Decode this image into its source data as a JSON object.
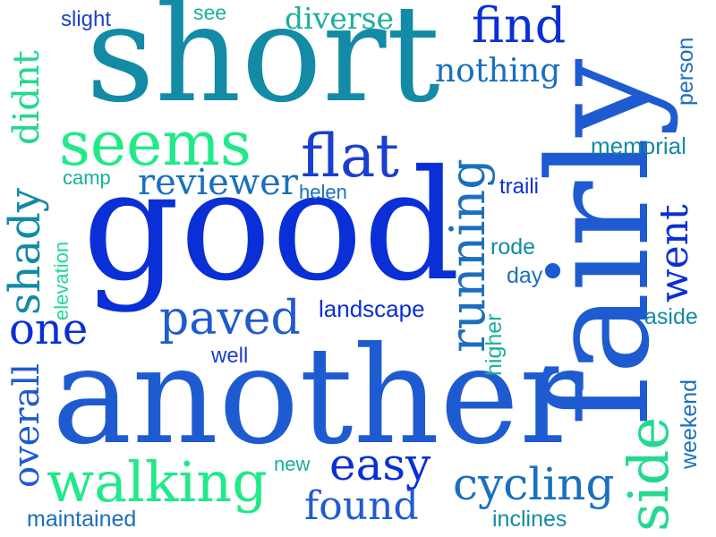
{
  "palette": {
    "dark_blue": "#0a2fd6",
    "blue": "#1f5bd0",
    "steel": "#1a6fbf",
    "teal": "#138aa6",
    "aqua": "#18b09a",
    "mint": "#1fea88",
    "green": "#22d98f"
  },
  "words": {
    "short": "short",
    "good": "good",
    "another": "another",
    "fairly": "fairly",
    "seems": "seems",
    "flat": "flat",
    "find": "find",
    "nothing": "nothing",
    "diverse": "diverse",
    "slight": "slight",
    "see": "see",
    "didnt": "didnt",
    "person": "person",
    "reviewer": "reviewer",
    "camp": "camp",
    "helen": "helen",
    "memorial": "memorial",
    "traili": "traili",
    "running": "running",
    "shady": "shady",
    "elevation": "elevation",
    "went": "went",
    "rode": "rode",
    "day": "day",
    "paved": "paved",
    "landscape": "landscape",
    "one": "one",
    "aside": "aside",
    "well": "well",
    "higher": "higher",
    "overall": "overall",
    "side": "side",
    "weekend": "weekend",
    "easy": "easy",
    "new": "new",
    "walking": "walking",
    "cycling": "cycling",
    "found": "found",
    "maintained": "maintained",
    "inclines": "inclines"
  }
}
